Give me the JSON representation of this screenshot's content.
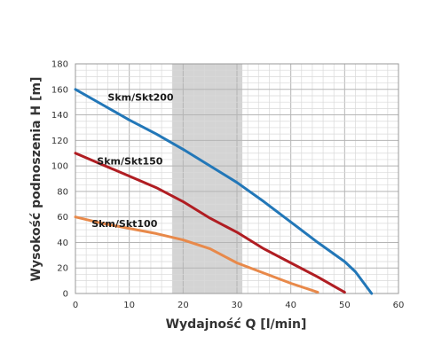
{
  "chart_data": {
    "type": "line",
    "title": "",
    "xlabel": "Wydajność Q [l/min]",
    "ylabel": "Wysokość podnoszenia H [m]",
    "xlim": [
      0,
      60
    ],
    "ylim": [
      0,
      180
    ],
    "x_ticks": [
      0,
      10,
      20,
      30,
      40,
      50,
      60
    ],
    "y_ticks": [
      0,
      20,
      40,
      60,
      80,
      100,
      120,
      140,
      160,
      180
    ],
    "grid": true,
    "legend": "none",
    "highlight_band": {
      "x_from": 18,
      "x_to": 31,
      "color": "#d4d4d4"
    },
    "series": [
      {
        "name": "Skm/Skt200",
        "color": "#2277b8",
        "x": [
          0,
          5,
          10,
          15,
          20,
          25,
          30,
          35,
          40,
          45,
          50,
          52,
          55
        ],
        "y": [
          160,
          148,
          136,
          125,
          113,
          100,
          87,
          72,
          56,
          40,
          25,
          17,
          0
        ]
      },
      {
        "name": "Skm/Skt150",
        "color": "#b01d22",
        "x": [
          0,
          5,
          10,
          15,
          20,
          25,
          30,
          35,
          40,
          45,
          50
        ],
        "y": [
          110,
          101,
          92,
          83,
          72,
          59,
          48,
          35,
          24,
          13,
          1
        ]
      },
      {
        "name": "Skm/Skt100",
        "color": "#e8894a",
        "x": [
          0,
          5,
          10,
          15,
          20,
          25,
          30,
          35,
          40,
          45
        ],
        "y": [
          60,
          55,
          51,
          47,
          42,
          35,
          24,
          16,
          8,
          1
        ]
      }
    ],
    "annotations": [
      {
        "text": "Skm/Skt200",
        "x": 6,
        "y": 151
      },
      {
        "text": "Skm/Skt150",
        "x": 4,
        "y": 101
      },
      {
        "text": "Skm/Skt100",
        "x": 3,
        "y": 52
      }
    ]
  }
}
